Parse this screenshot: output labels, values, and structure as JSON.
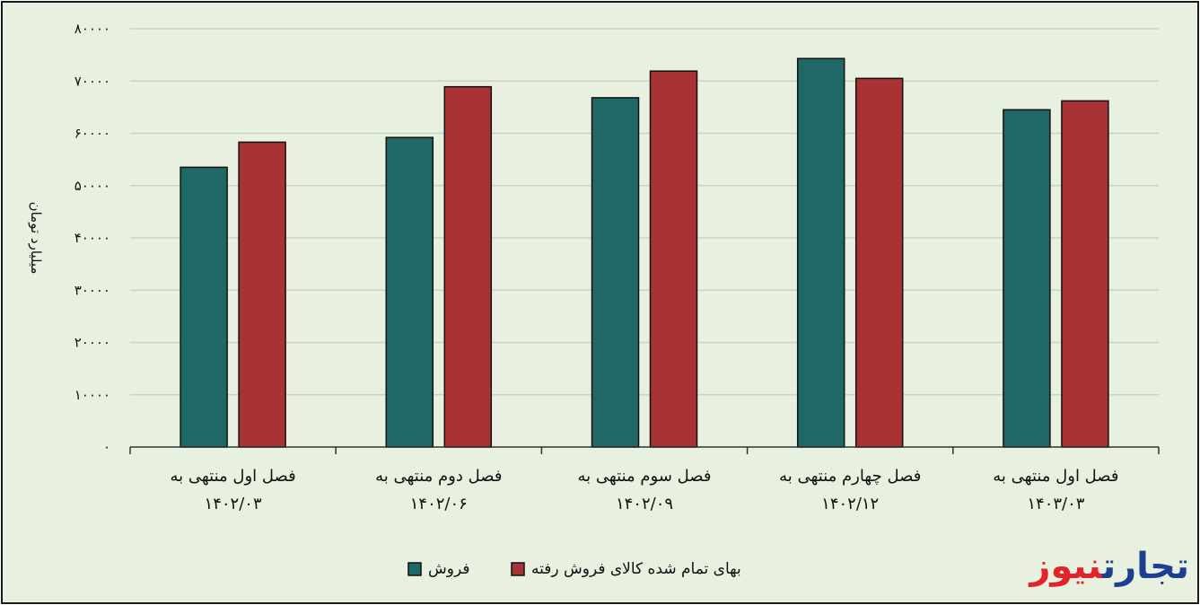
{
  "chart_data": {
    "type": "bar",
    "ylabel": "میلیارد تومان",
    "ylim": [
      0,
      80000
    ],
    "yticks": [
      "۰",
      "۱۰۰۰۰",
      "۲۰۰۰۰",
      "۳۰۰۰۰",
      "۴۰۰۰۰",
      "۵۰۰۰۰",
      "۶۰۰۰۰",
      "۷۰۰۰۰",
      "۸۰۰۰۰"
    ],
    "categories": [
      [
        "فصل اول منتهی به",
        "۱۴۰۲/۰۳"
      ],
      [
        "فصل دوم منتهی به",
        "۱۴۰۲/۰۶"
      ],
      [
        "فصل سوم منتهی به",
        "۱۴۰۲/۰۹"
      ],
      [
        "فصل چهارم منتهی به",
        "۱۴۰۲/۱۲"
      ],
      [
        "فصل اول منتهی به",
        "۱۴۰۳/۰۳"
      ]
    ],
    "series": [
      {
        "name": "فروش",
        "color": "#1f6867",
        "values": [
          53500,
          59200,
          66800,
          74300,
          64500
        ]
      },
      {
        "name": "بهای تمام شده کالای فروش رفته",
        "color": "#a83234",
        "values": [
          58300,
          68900,
          71900,
          70500,
          66200
        ]
      }
    ],
    "grid": true,
    "legend": "bottom-center"
  },
  "logo": {
    "part1": "تجارت",
    "part2": "نیوز",
    "color1": "#1d3f8f",
    "color2": "#e0242a"
  }
}
